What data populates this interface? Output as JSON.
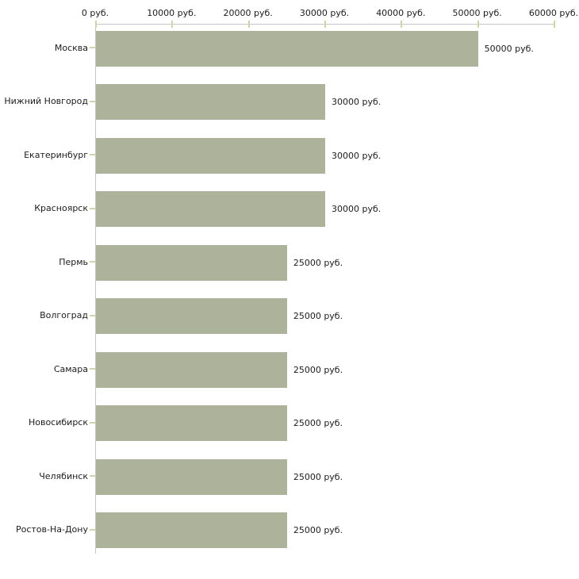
{
  "chart_data": {
    "type": "bar",
    "orientation": "horizontal",
    "title": "",
    "categories": [
      "Москва",
      "Нижний Новгород",
      "Екатеринбург",
      "Красноярск",
      "Пермь",
      "Волгоград",
      "Самара",
      "Новосибирск",
      "Челябинск",
      "Ростов-На-Дону"
    ],
    "values": [
      50000,
      30000,
      30000,
      30000,
      25000,
      25000,
      25000,
      25000,
      25000,
      25000
    ],
    "value_labels": [
      "50000 руб.",
      "30000 руб.",
      "30000 руб.",
      "30000 руб.",
      "25000 руб.",
      "25000 руб.",
      "25000 руб.",
      "25000 руб.",
      "25000 руб.",
      "25000 руб."
    ],
    "x_ticks": [
      0,
      10000,
      20000,
      30000,
      40000,
      50000,
      60000
    ],
    "x_tick_labels": [
      "0 руб.",
      "10000 руб.",
      "20000 руб.",
      "30000 руб.",
      "40000 руб.",
      "50000 руб.",
      "60000 руб."
    ],
    "xlim": [
      0,
      60000
    ],
    "xlabel": "",
    "ylabel": "",
    "unit": "руб.",
    "grid": false,
    "legend": false,
    "axis_position": "top",
    "colors": {
      "bar": "#adb39a",
      "axis_line": "#c6c6c6",
      "tick": "#d2d3ac",
      "text": "#1c1c1c",
      "background": "#ffffff"
    }
  }
}
